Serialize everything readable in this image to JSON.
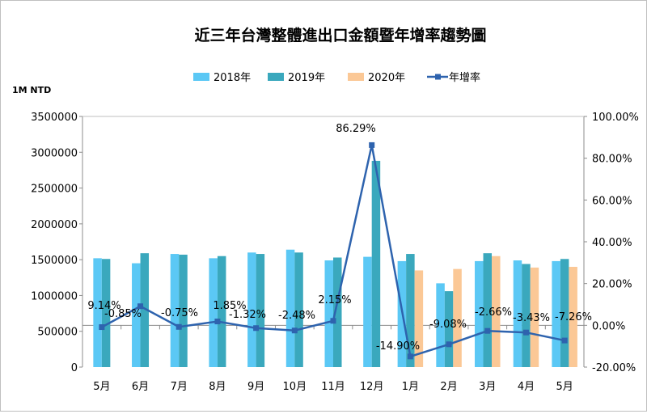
{
  "chart_data": {
    "type": "bar+line",
    "title": "近三年台灣整體進出口金額暨年增率趨勢圖",
    "y_left_unit": "1M NTD",
    "categories": [
      "5月",
      "6月",
      "7月",
      "8月",
      "9月",
      "10月",
      "11月",
      "12月",
      "1月",
      "2月",
      "3月",
      "4月",
      "5月"
    ],
    "y_left": {
      "min": 0,
      "max": 3500000,
      "ticks": [
        "0",
        "500000",
        "1000000",
        "1500000",
        "2000000",
        "2500000",
        "3000000",
        "3500000"
      ]
    },
    "y_right": {
      "min": -20,
      "max": 100,
      "ticks": [
        "-20.00%",
        "0.00%",
        "20.00%",
        "40.00%",
        "60.00%",
        "80.00%",
        "100.00%"
      ]
    },
    "series": [
      {
        "name": "2018年",
        "kind": "bar",
        "color": "#5bc8f5",
        "values": [
          1520000,
          1450000,
          1580000,
          1520000,
          1600000,
          1640000,
          1490000,
          1540000,
          1480000,
          1170000,
          1480000,
          1490000,
          1480000
        ]
      },
      {
        "name": "2019年",
        "kind": "bar",
        "color": "#3aa8bd",
        "values": [
          1510000,
          1590000,
          1570000,
          1550000,
          1580000,
          1600000,
          1530000,
          2880000,
          1580000,
          1060000,
          1590000,
          1440000,
          1510000
        ]
      },
      {
        "name": "2020年",
        "kind": "bar",
        "color": "#fbc896",
        "values": [
          null,
          null,
          null,
          null,
          null,
          null,
          null,
          null,
          1350000,
          1370000,
          1550000,
          1390000,
          1400000
        ]
      },
      {
        "name": "年增率",
        "kind": "line",
        "axis": "right",
        "color": "#2e63ae",
        "values": [
          -0.85,
          9.14,
          -0.75,
          1.85,
          -1.32,
          -2.48,
          2.15,
          86.29,
          -14.9,
          -9.08,
          -2.66,
          -3.43,
          -7.26
        ],
        "labels": [
          "-0.85%",
          "9.14%",
          "-0.75%",
          "1.85%",
          "-1.32%",
          "-2.48%",
          "2.15%",
          "86.29%",
          "-14.90%",
          "-9.08%",
          "-2.66%",
          "-3.43%",
          "-7.26%"
        ]
      }
    ],
    "legend_position": "top",
    "grid": false
  }
}
